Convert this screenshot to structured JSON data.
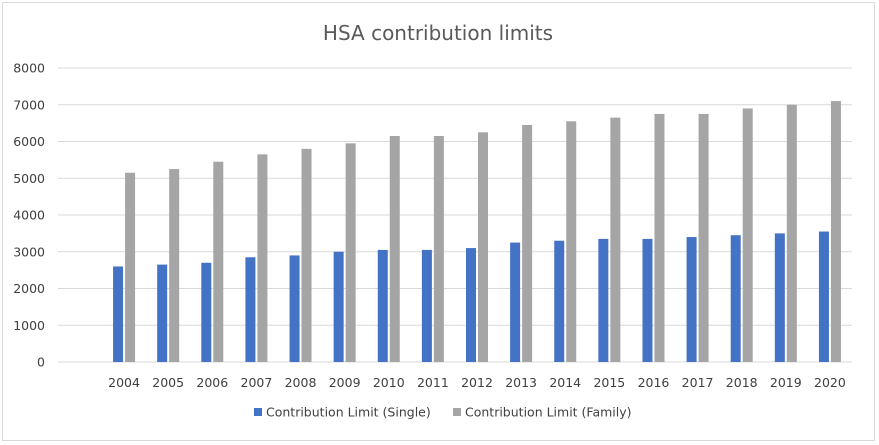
{
  "chart_data": {
    "type": "bar",
    "title": "HSA contribution limits",
    "xlabel": "",
    "ylabel": "",
    "categories": [
      "2004",
      "2005",
      "2006",
      "2007",
      "2008",
      "2009",
      "2010",
      "2011",
      "2012",
      "2013",
      "2014",
      "2015",
      "2016",
      "2017",
      "2018",
      "2019",
      "2020"
    ],
    "series": [
      {
        "name": "Contribution Limit (Single)",
        "color": "#4472c4",
        "values": [
          2600,
          2650,
          2700,
          2850,
          2900,
          3000,
          3050,
          3050,
          3100,
          3250,
          3300,
          3350,
          3350,
          3400,
          3450,
          3500,
          3550
        ]
      },
      {
        "name": "Contribution Limit (Family)",
        "color": "#a5a5a5",
        "values": [
          5150,
          5250,
          5450,
          5650,
          5800,
          5950,
          6150,
          6150,
          6250,
          6450,
          6550,
          6650,
          6750,
          6750,
          6900,
          7000,
          7100
        ]
      }
    ],
    "yticks": [
      "0",
      "1000",
      "2000",
      "3000",
      "4000",
      "5000",
      "6000",
      "7000",
      "8000"
    ],
    "ylim": [
      0,
      8000
    ],
    "grid": true,
    "legend_position": "bottom"
  }
}
